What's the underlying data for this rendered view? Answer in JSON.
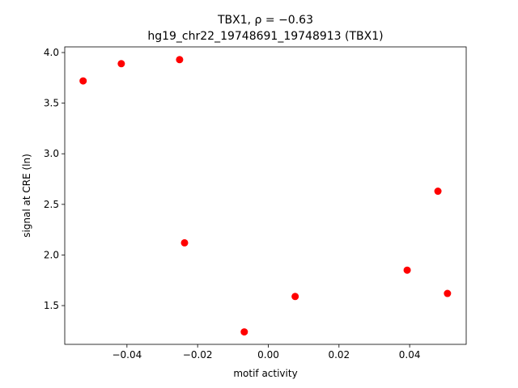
{
  "chart_data": {
    "type": "scatter",
    "title": "TBX1, ρ = −0.63",
    "subtitle": "hg19_chr22_19748691_19748913 (TBX1)",
    "x_label": "motif activity",
    "y_label": "signal at CRE (ln)",
    "color": "#ff0000",
    "series": [
      {
        "name": "points",
        "color": "#ff0000",
        "x": [
          -0.0524,
          -0.0416,
          -0.0251,
          -0.0237,
          -0.0068,
          0.0076,
          0.0393,
          0.048,
          0.0507
        ],
        "values": [
          3.72,
          3.89,
          3.93,
          2.12,
          1.24,
          1.59,
          1.85,
          2.63,
          1.62
        ]
      }
    ],
    "xlim": [
      -0.0576,
      0.056
    ],
    "ylim": [
      1.117,
      4.056
    ],
    "xticks": [
      {
        "value": -0.04,
        "label": "−0.04"
      },
      {
        "value": -0.02,
        "label": "−0.02"
      },
      {
        "value": 0,
        "label": "0.00"
      },
      0.02,
      0.04
    ],
    "yticks": [
      1.5,
      {
        "value": 2,
        "label": "2.0"
      },
      2.5,
      {
        "value": 3,
        "label": "3.0"
      },
      3.5,
      {
        "value": 4,
        "label": "4.0"
      }
    ]
  }
}
